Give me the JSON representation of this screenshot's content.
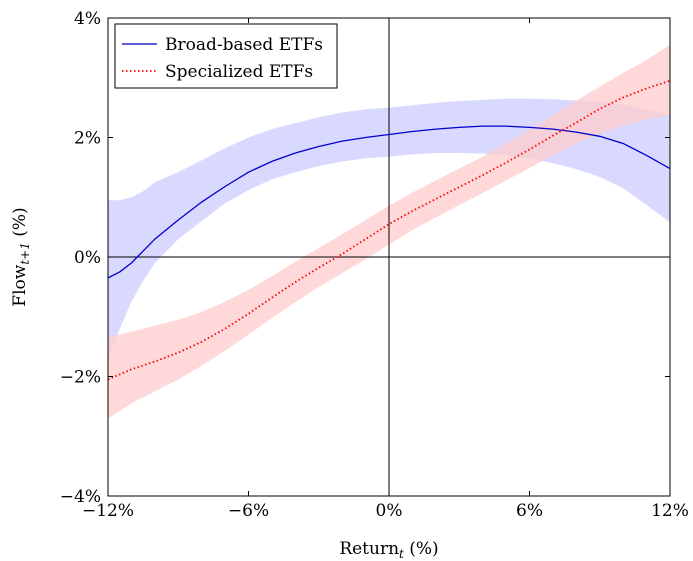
{
  "chart_data": {
    "type": "line",
    "xlabel": "Return",
    "xlabel_sub": "t",
    "xlabel_unit": " (%)",
    "ylabel": "Flow",
    "ylabel_sub": "t+1",
    "ylabel_unit": " (%)",
    "xlim": [
      -12,
      12
    ],
    "ylim": [
      -4,
      4
    ],
    "x_ticks": [
      -12,
      -6,
      0,
      6,
      12
    ],
    "y_ticks": [
      -4,
      -2,
      0,
      2,
      4
    ],
    "x_tick_labels": [
      "−12%",
      "−6%",
      "0%",
      "6%",
      "12%"
    ],
    "y_tick_labels": [
      "−4%",
      "−2%",
      "0%",
      "2%",
      "4%"
    ],
    "reference_lines": {
      "x": 0,
      "y": 0
    },
    "legend_position": "top-left",
    "series": [
      {
        "name": "Broad-based ETFs",
        "color": "#0000cc",
        "band_color": "#ccccff",
        "style": "solid",
        "x": [
          -12,
          -11.5,
          -11,
          -10.5,
          -10,
          -9,
          -8,
          -7,
          -6,
          -5,
          -4,
          -3,
          -2,
          -1,
          0,
          1,
          2,
          3,
          4,
          5,
          6,
          7,
          8,
          9,
          10,
          11,
          12
        ],
        "y": [
          -0.35,
          -0.25,
          -0.1,
          0.1,
          0.3,
          0.62,
          0.92,
          1.18,
          1.42,
          1.6,
          1.74,
          1.85,
          1.94,
          2.0,
          2.05,
          2.1,
          2.14,
          2.17,
          2.19,
          2.19,
          2.17,
          2.14,
          2.09,
          2.02,
          1.9,
          1.7,
          1.48
        ],
        "lower": [
          -1.7,
          -1.2,
          -0.75,
          -0.4,
          -0.1,
          0.3,
          0.6,
          0.9,
          1.12,
          1.3,
          1.42,
          1.52,
          1.6,
          1.65,
          1.68,
          1.72,
          1.74,
          1.74,
          1.73,
          1.7,
          1.65,
          1.57,
          1.47,
          1.34,
          1.15,
          0.87,
          0.58
        ],
        "upper": [
          0.95,
          0.95,
          1.0,
          1.1,
          1.25,
          1.42,
          1.62,
          1.82,
          2.0,
          2.14,
          2.24,
          2.34,
          2.42,
          2.47,
          2.5,
          2.54,
          2.58,
          2.61,
          2.63,
          2.65,
          2.65,
          2.64,
          2.62,
          2.6,
          2.55,
          2.47,
          2.37
        ]
      },
      {
        "name": "Specialized ETFs",
        "color": "#ff0000",
        "band_color": "#ffcccc",
        "style": "dotted",
        "x": [
          -12,
          -11,
          -10,
          -9,
          -8,
          -7,
          -6,
          -5,
          -4,
          -3,
          -2,
          -1,
          0,
          1,
          2,
          3,
          4,
          5,
          6,
          7,
          8,
          9,
          10,
          11,
          12
        ],
        "y": [
          -2.05,
          -1.88,
          -1.75,
          -1.6,
          -1.42,
          -1.2,
          -0.95,
          -0.68,
          -0.42,
          -0.18,
          0.05,
          0.3,
          0.55,
          0.77,
          0.97,
          1.17,
          1.37,
          1.58,
          1.8,
          2.03,
          2.25,
          2.48,
          2.67,
          2.82,
          2.95
        ],
        "lower": [
          -2.7,
          -2.45,
          -2.25,
          -2.05,
          -1.82,
          -1.57,
          -1.3,
          -1.02,
          -0.76,
          -0.5,
          -0.27,
          -0.04,
          0.21,
          0.45,
          0.66,
          0.87,
          1.07,
          1.28,
          1.49,
          1.7,
          1.9,
          2.06,
          2.2,
          2.3,
          2.37
        ],
        "upper": [
          -1.35,
          -1.25,
          -1.15,
          -1.05,
          -0.92,
          -0.75,
          -0.55,
          -0.32,
          -0.08,
          0.15,
          0.38,
          0.62,
          0.86,
          1.08,
          1.28,
          1.48,
          1.68,
          1.9,
          2.13,
          2.37,
          2.62,
          2.85,
          3.08,
          3.3,
          3.55
        ]
      }
    ]
  }
}
